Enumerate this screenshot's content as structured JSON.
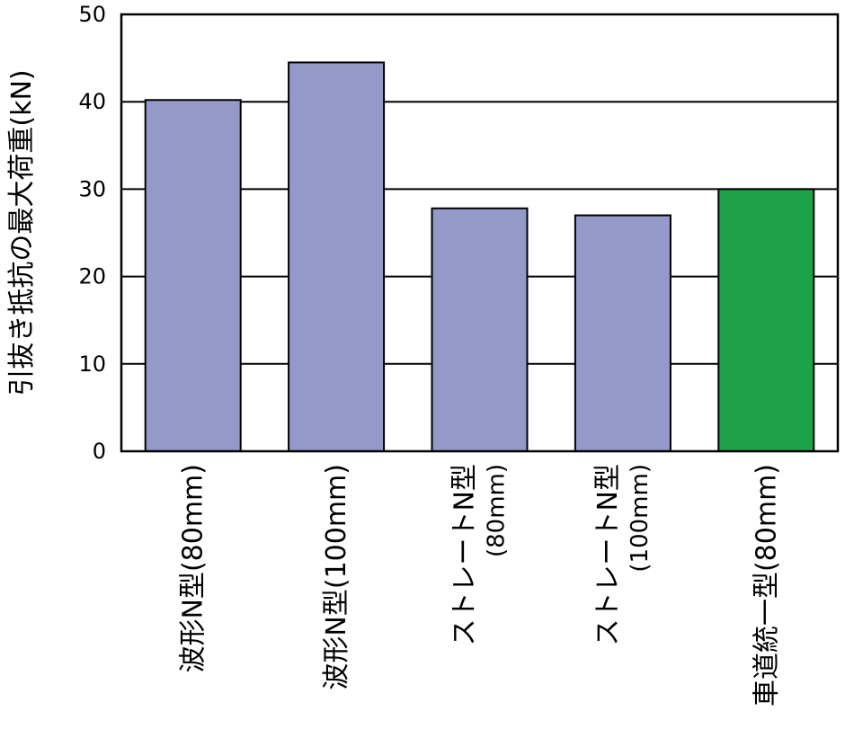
{
  "chart_data": {
    "type": "bar",
    "ylabel": "引抜き抵抗の最大荷重(kN)",
    "ylim": [
      0,
      50
    ],
    "yticks": [
      0,
      10,
      20,
      30,
      40,
      50
    ],
    "grid": true,
    "categories": [
      [
        "波形N型(80mm)"
      ],
      [
        "波形N型(100mm)"
      ],
      [
        "ストレートN型",
        "(80mm)"
      ],
      [
        "ストレートN型",
        "(100mm)"
      ],
      [
        "車道統一型(80mm)"
      ]
    ],
    "values": [
      40.2,
      44.5,
      27.8,
      27.0,
      30.0
    ],
    "bar_colors": [
      "#9499C9",
      "#9499C9",
      "#9499C9",
      "#9499C9",
      "#1FA34A"
    ]
  }
}
